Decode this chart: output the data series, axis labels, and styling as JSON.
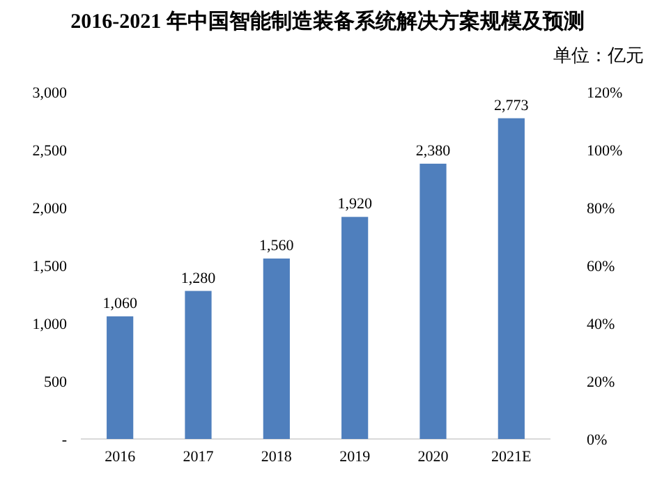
{
  "chart_data": {
    "type": "bar",
    "title": "2016-2021 年中国智能制造装备系统解决方案规模及预测",
    "annotations": [
      "单位：亿元"
    ],
    "categories": [
      "2016",
      "2017",
      "2018",
      "2019",
      "2020",
      "2021E"
    ],
    "series": [
      {
        "color": "#4f7fbd",
        "values": [
          1060,
          1280,
          1560,
          1920,
          2380,
          2773
        ],
        "value_labels": [
          "1,060",
          "1,280",
          "1,560",
          "1,920",
          "2,380",
          "2,773"
        ]
      }
    ],
    "ylim": [
      0,
      3000
    ],
    "yticks": [
      {
        "value": 0,
        "label": "-"
      },
      500,
      {
        "value": 1000,
        "label": "1,000"
      },
      {
        "value": 1500,
        "label": "1,500"
      },
      {
        "value": 2000,
        "label": "2,000"
      },
      {
        "value": 2500,
        "label": "2,500"
      },
      {
        "value": 3000,
        "label": "3,000"
      }
    ],
    "y2lim": [
      0,
      1.2
    ],
    "y2ticks": [
      {
        "value": 0,
        "label": "0%"
      },
      {
        "value": 0.2,
        "label": "20%"
      },
      {
        "value": 0.4,
        "label": "40%"
      },
      {
        "value": 0.6,
        "label": "60%"
      },
      {
        "value": 0.8,
        "label": "80%"
      },
      {
        "value": 1.0,
        "label": "100%"
      },
      {
        "value": 1.2,
        "label": "120%"
      }
    ],
    "grid": false
  }
}
